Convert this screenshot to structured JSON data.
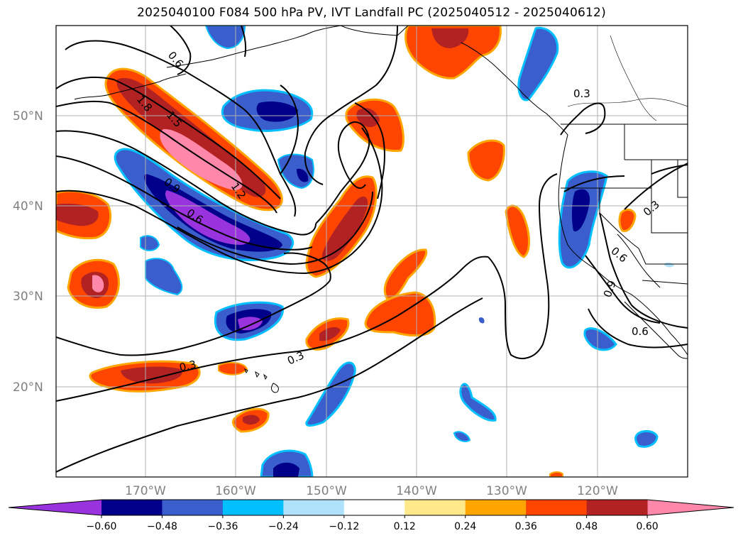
{
  "title": "2025040100 F084 500 hPa PV, IVT Landfall PC (2025040512 - 2025040612)",
  "lat_labels": [
    "50°N",
    "40°N",
    "30°N",
    "20°N"
  ],
  "lon_labels": [
    "170°W",
    "160°W",
    "150°W",
    "140°W",
    "130°W",
    "120°W"
  ],
  "colorbar": {
    "ticks": [
      "−0.60",
      "−0.48",
      "−0.36",
      "−0.24",
      "−0.12",
      "0.12",
      "0.24",
      "0.36",
      "0.48",
      "0.60"
    ],
    "colors": [
      "#9933dd",
      "#00008b",
      "#3a5fcd",
      "#00bfff",
      "#afe2fa",
      "#ffffff",
      "#ffe98a",
      "#ffa500",
      "#ff4500",
      "#b22222",
      "#ff88aa"
    ],
    "extend": "both"
  },
  "contour_labels": [
    "0.6",
    "1.8",
    "1.5",
    "1.2",
    "0.9",
    "0.6",
    "0.3",
    "0.3",
    "0.3",
    "0.3",
    "0.6",
    "0.9",
    "0.6"
  ],
  "colors": {
    "purple": "#9933dd",
    "navy": "#00008b",
    "blue": "#3a5fcd",
    "cyan": "#00bfff",
    "lightblue": "#afe2fa",
    "yellow": "#ffe98a",
    "orange": "#ffa500",
    "redorange": "#ff4500",
    "darkred": "#b22222",
    "pink": "#ff88aa",
    "grid": "#b0b0b0"
  }
}
